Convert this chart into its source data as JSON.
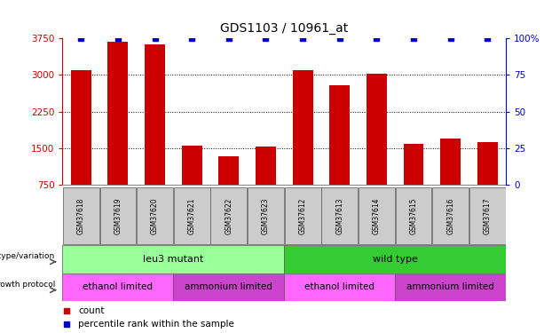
{
  "title": "GDS1103 / 10961_at",
  "samples": [
    "GSM37618",
    "GSM37619",
    "GSM37620",
    "GSM37621",
    "GSM37622",
    "GSM37623",
    "GSM37612",
    "GSM37613",
    "GSM37614",
    "GSM37615",
    "GSM37616",
    "GSM37617"
  ],
  "counts": [
    3100,
    3680,
    3620,
    1560,
    1330,
    1540,
    3100,
    2780,
    3020,
    1580,
    1700,
    1620
  ],
  "percentile_ranks": [
    100,
    100,
    100,
    100,
    100,
    100,
    100,
    100,
    100,
    100,
    100,
    100
  ],
  "ylim_left": [
    750,
    3750
  ],
  "ylim_right": [
    0,
    100
  ],
  "yticks_left": [
    750,
    1500,
    2250,
    3000,
    3750
  ],
  "yticks_right": [
    0,
    25,
    50,
    75,
    100
  ],
  "bar_color": "#cc0000",
  "dot_color": "#0000cc",
  "bg_color": "#ffffff",
  "genotype_groups": [
    {
      "label": "leu3 mutant",
      "start": 0,
      "end": 6,
      "color": "#99ff99"
    },
    {
      "label": "wild type",
      "start": 6,
      "end": 12,
      "color": "#33cc33"
    }
  ],
  "protocol_groups": [
    {
      "label": "ethanol limited",
      "start": 0,
      "end": 3,
      "color": "#ff66ff"
    },
    {
      "label": "ammonium limited",
      "start": 3,
      "end": 6,
      "color": "#cc44cc"
    },
    {
      "label": "ethanol limited",
      "start": 6,
      "end": 9,
      "color": "#ff66ff"
    },
    {
      "label": "ammonium limited",
      "start": 9,
      "end": 12,
      "color": "#cc44cc"
    }
  ],
  "legend_count_color": "#cc0000",
  "legend_pct_color": "#0000cc",
  "left_axis_color": "#cc0000",
  "right_axis_color": "#0000cc",
  "tick_bg_color": "#cccccc",
  "grid_lines": [
    1500,
    2250,
    3000
  ]
}
